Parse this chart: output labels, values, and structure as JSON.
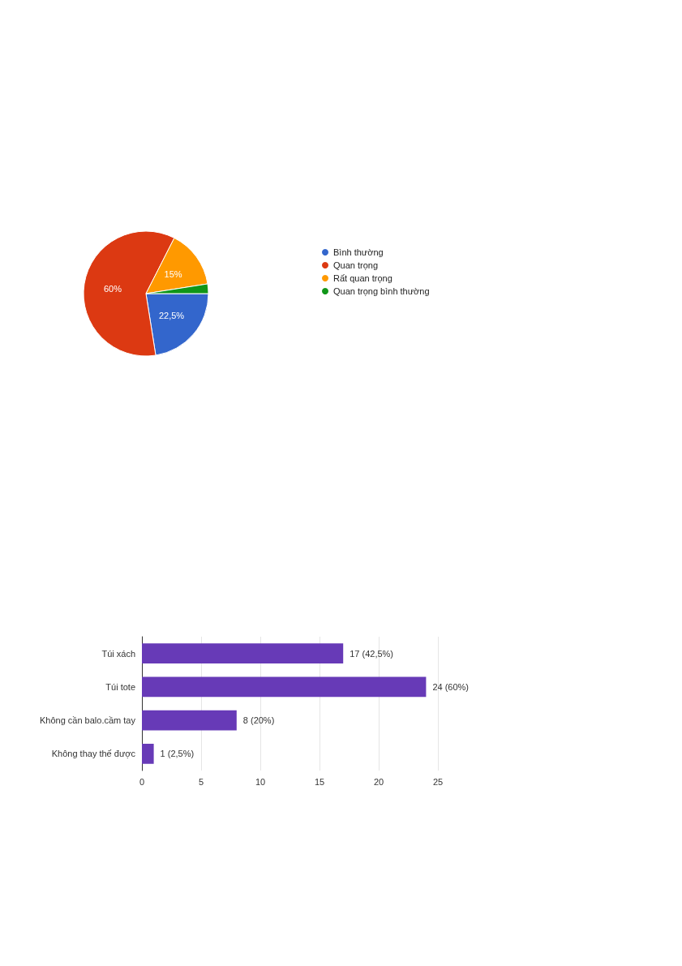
{
  "chart_data": [
    {
      "type": "pie",
      "categories": [
        "Bình thường",
        "Quan trọng",
        "Rất quan trọng",
        "Quan trọng bình thường"
      ],
      "values": [
        22.5,
        60,
        15,
        2.5
      ],
      "colors": [
        "#3366cc",
        "#dc3912",
        "#ff9900",
        "#109618"
      ],
      "value_labels": [
        "22,5%",
        "60%",
        "15%",
        null
      ],
      "legend": "right"
    },
    {
      "type": "bar",
      "orientation": "horizontal",
      "categories": [
        "Túi xách",
        "Túi tote",
        "Không cần balo.cầm tay",
        "Không thay thế được"
      ],
      "values": [
        17,
        24,
        8,
        1
      ],
      "color": "#673ab7",
      "value_labels": [
        "17 (42,5%)",
        "24 (60%)",
        "8 (20%)",
        "1 (2,5%)"
      ],
      "xlim": [
        0,
        25
      ],
      "xticks": [
        0,
        5,
        10,
        15,
        20,
        25
      ],
      "grid": "x"
    }
  ]
}
